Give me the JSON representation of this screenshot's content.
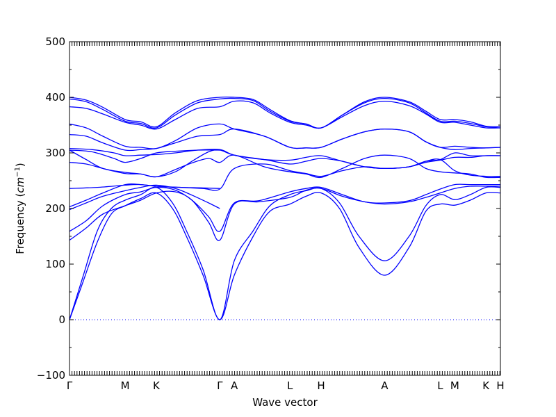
{
  "chart_data": {
    "type": "line",
    "title": "",
    "xlabel": "Wave vector",
    "ylabel_text": "Frequency (",
    "ylabel_unit": "cm",
    "ylabel_exp": "−1",
    "ylabel_close": ")",
    "ylim": [
      -100,
      500
    ],
    "yticks": [
      -100,
      0,
      100,
      200,
      300,
      400,
      500
    ],
    "ytick_labels": [
      "−100",
      "0",
      "100",
      "200",
      "300",
      "400",
      "500"
    ],
    "xlim": [
      0,
      7.7
    ],
    "high_symmetry_points": [
      {
        "label": "Γ",
        "x": 0.0
      },
      {
        "label": "M",
        "x": 1.0
      },
      {
        "label": "K",
        "x": 1.56
      },
      {
        "label": "Γ",
        "x": 2.7
      },
      {
        "label": "A",
        "x": 2.96
      },
      {
        "label": "L",
        "x": 3.96
      },
      {
        "label": "H",
        "x": 4.52
      },
      {
        "label": "A",
        "x": 5.66
      },
      {
        "label": "L",
        "x": 6.66
      },
      {
        "label": "M",
        "x": 6.92
      },
      {
        "label": "K",
        "x": 7.48
      },
      {
        "label": "H",
        "x": 7.74
      }
    ],
    "zero_line": true,
    "grid": false,
    "series_color": "#0000ff",
    "series": [
      {
        "x": [
          0,
          0.25,
          0.5,
          0.75,
          1.0,
          1.28,
          1.56,
          1.85,
          2.1,
          2.4,
          2.7,
          2.96,
          3.3,
          3.6,
          3.96,
          4.25,
          4.52,
          4.85,
          5.2,
          5.66,
          6.1,
          6.4,
          6.66,
          6.92,
          7.2,
          7.48,
          7.74
        ],
        "values": [
          0,
          70,
          140,
          190,
          205,
          218,
          228,
          200,
          150,
          80,
          0,
          80,
          150,
          195,
          208,
          222,
          228,
          200,
          130,
          80,
          130,
          195,
          208,
          206,
          215,
          228,
          228
        ]
      },
      {
        "x": [
          0,
          0.25,
          0.5,
          0.75,
          1.0,
          1.28,
          1.56,
          1.85,
          2.1,
          2.4,
          2.7,
          2.96,
          3.3,
          3.6,
          3.96,
          4.25,
          4.52,
          4.85,
          5.2,
          5.66,
          6.1,
          6.4,
          6.66,
          6.92,
          7.2,
          7.48,
          7.74
        ],
        "values": [
          0,
          80,
          160,
          200,
          215,
          225,
          238,
          210,
          160,
          90,
          0,
          106,
          160,
          205,
          225,
          232,
          236,
          210,
          150,
          106,
          150,
          205,
          225,
          216,
          225,
          238,
          238
        ]
      },
      {
        "x": [
          0,
          0.3,
          0.6,
          1.0,
          1.28,
          1.56,
          1.9,
          2.2,
          2.5,
          2.7,
          2.96,
          3.4,
          3.96,
          4.25,
          4.52,
          4.9,
          5.3,
          5.66,
          6.1,
          6.4,
          6.66,
          6.92,
          7.2,
          7.48,
          7.74
        ],
        "values": [
          143,
          165,
          190,
          205,
          215,
          228,
          230,
          215,
          175,
          143,
          208,
          212,
          220,
          233,
          236,
          222,
          212,
          208,
          212,
          220,
          228,
          236,
          240,
          240,
          240
        ]
      },
      {
        "x": [
          0,
          0.3,
          0.6,
          1.0,
          1.28,
          1.56,
          1.9,
          2.2,
          2.5,
          2.7,
          2.96,
          3.4,
          3.96,
          4.25,
          4.52,
          4.9,
          5.3,
          5.66,
          6.1,
          6.4,
          6.66,
          6.92,
          7.2,
          7.48,
          7.74
        ],
        "values": [
          159,
          178,
          205,
          225,
          230,
          238,
          233,
          215,
          185,
          159,
          210,
          214,
          230,
          236,
          238,
          225,
          212,
          210,
          214,
          225,
          235,
          243,
          243,
          243,
          243
        ]
      },
      {
        "x": [
          0,
          0.3,
          0.6,
          1.0,
          1.28,
          1.56,
          1.9,
          2.2,
          2.5,
          2.7
        ],
        "values": [
          198,
          210,
          222,
          232,
          238,
          242,
          236,
          224,
          210,
          200
        ]
      },
      {
        "x": [
          0,
          0.3,
          0.6,
          1.0,
          1.28,
          1.56,
          2.0,
          2.4,
          2.7,
          2.96,
          3.5,
          3.96,
          4.25,
          4.52,
          4.9,
          5.3,
          5.66,
          6.1,
          6.4,
          6.66,
          6.92,
          7.2,
          7.48,
          7.74
        ],
        "values": [
          203,
          215,
          228,
          243,
          243,
          240,
          238,
          236,
          235,
          272,
          280,
          268,
          263,
          258,
          268,
          275,
          272,
          275,
          285,
          288,
          268,
          260,
          258,
          258
        ]
      },
      {
        "x": [
          0,
          0.5,
          1.0,
          1.28,
          1.56,
          2.0,
          2.4,
          2.7
        ],
        "values": [
          236,
          238,
          242,
          243,
          240,
          238,
          237,
          236
        ]
      },
      {
        "x": [
          0,
          0.3,
          0.6,
          1.0,
          1.28,
          1.56,
          1.9,
          2.2,
          2.5,
          2.7,
          2.96,
          3.5,
          3.96,
          4.25,
          4.52,
          4.9,
          5.3,
          5.66,
          6.1,
          6.4,
          6.66,
          6.92,
          7.2,
          7.48,
          7.74
        ],
        "values": [
          283,
          280,
          272,
          263,
          262,
          257,
          270,
          282,
          290,
          283,
          296,
          275,
          266,
          262,
          256,
          272,
          290,
          296,
          290,
          272,
          266,
          264,
          262,
          256,
          256
        ]
      },
      {
        "x": [
          0,
          0.3,
          0.6,
          1.0,
          1.28,
          1.56,
          1.9,
          2.2,
          2.5,
          2.7,
          2.96,
          3.5,
          3.96,
          4.25,
          4.52,
          4.9,
          5.3,
          5.66,
          6.1,
          6.4,
          6.66,
          6.92,
          7.2,
          7.48,
          7.74
        ],
        "values": [
          305,
          288,
          272,
          265,
          262,
          257,
          266,
          285,
          302,
          305,
          296,
          288,
          287,
          292,
          295,
          285,
          275,
          272,
          275,
          283,
          287,
          292,
          292,
          295,
          295
        ]
      },
      {
        "x": [
          0,
          0.4,
          0.8,
          1.0,
          1.28,
          1.56,
          1.9,
          2.3,
          2.7
        ],
        "values": [
          305,
          302,
          290,
          283,
          290,
          300,
          303,
          305,
          305
        ]
      },
      {
        "x": [
          0,
          0.4,
          0.8,
          1.0,
          1.28,
          1.56,
          1.9,
          2.3,
          2.7,
          2.96,
          3.5,
          3.96,
          4.25,
          4.52,
          4.9,
          5.3,
          5.66,
          6.1,
          6.4,
          6.66,
          6.92,
          7.2,
          7.48,
          7.74
        ],
        "values": [
          308,
          306,
          300,
          295,
          296,
          297,
          300,
          305,
          306,
          296,
          288,
          280,
          285,
          290,
          285,
          275,
          272,
          275,
          285,
          288,
          300,
          295,
          295,
          295
        ]
      },
      {
        "x": [
          0,
          0.3,
          0.6,
          1.0,
          1.28,
          1.56,
          1.9,
          2.3,
          2.7,
          2.96,
          3.5,
          3.96,
          4.25,
          4.52,
          4.9,
          5.3,
          5.66,
          6.1,
          6.4,
          6.66,
          6.92,
          7.2,
          7.48,
          7.74
        ],
        "values": [
          333,
          330,
          318,
          305,
          306,
          308,
          318,
          330,
          333,
          343,
          330,
          310,
          309,
          310,
          325,
          338,
          343,
          338,
          320,
          310,
          306,
          308,
          309,
          310
        ]
      },
      {
        "x": [
          0,
          0.3,
          0.6,
          1.0,
          1.28,
          1.56,
          1.9,
          2.3,
          2.7,
          2.96,
          3.5,
          3.96,
          4.25,
          4.52,
          4.9,
          5.3,
          5.66,
          6.1,
          6.4,
          6.66,
          6.92,
          7.2,
          7.48,
          7.74
        ],
        "values": [
          352,
          345,
          330,
          312,
          310,
          308,
          322,
          345,
          352,
          343,
          330,
          310,
          309,
          310,
          325,
          338,
          343,
          338,
          320,
          310,
          312,
          310,
          309,
          310
        ]
      },
      {
        "x": [
          0,
          0.3,
          0.6,
          1.0,
          1.28,
          1.56,
          1.9,
          2.3,
          2.7,
          2.96,
          3.3,
          3.6,
          3.96,
          4.25,
          4.52,
          4.9,
          5.3,
          5.66,
          6.1,
          6.4,
          6.66,
          6.92,
          7.2,
          7.48,
          7.74
        ],
        "values": [
          383,
          380,
          370,
          355,
          350,
          343,
          360,
          380,
          383,
          393,
          390,
          372,
          355,
          350,
          345,
          365,
          385,
          393,
          385,
          370,
          355,
          355,
          350,
          345,
          345
        ]
      },
      {
        "x": [
          0,
          0.3,
          0.6,
          1.0,
          1.28,
          1.56,
          1.9,
          2.3,
          2.7,
          2.96,
          3.3,
          3.6,
          3.96,
          4.25,
          4.52,
          4.9,
          5.3,
          5.66,
          6.1,
          6.4,
          6.66,
          6.92,
          7.2,
          7.48,
          7.74
        ],
        "values": [
          397,
          392,
          378,
          357,
          353,
          345,
          368,
          390,
          397,
          398,
          394,
          375,
          357,
          352,
          345,
          368,
          390,
          398,
          390,
          372,
          357,
          357,
          353,
          347,
          345
        ]
      },
      {
        "x": [
          0,
          0.3,
          0.6,
          1.0,
          1.28,
          1.56,
          1.9,
          2.3,
          2.7,
          2.96,
          3.3,
          3.6,
          3.96,
          4.25,
          4.52,
          4.9,
          5.3,
          5.66,
          6.1,
          6.4,
          6.66,
          6.92,
          7.2,
          7.48,
          7.74
        ],
        "values": [
          400,
          395,
          382,
          360,
          356,
          347,
          372,
          394,
          400,
          400,
          396,
          378,
          358,
          352,
          345,
          368,
          392,
          400,
          392,
          375,
          360,
          360,
          356,
          348,
          347
        ]
      }
    ]
  }
}
